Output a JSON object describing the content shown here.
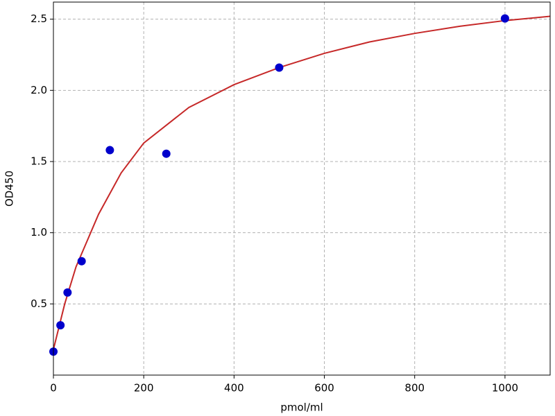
{
  "chart_data": {
    "type": "scatter",
    "xlabel": "pmol/ml",
    "ylabel": "OD450",
    "x": [
      0,
      15.6,
      31.25,
      62.5,
      125,
      250,
      500,
      1000
    ],
    "values": [
      0.165,
      0.35,
      0.58,
      0.8,
      1.58,
      1.555,
      2.16,
      2.505
    ],
    "color": "#0000cc",
    "fit": {
      "x": [
        0,
        25,
        50,
        100,
        150,
        200,
        300,
        400,
        500,
        600,
        700,
        800,
        900,
        1000,
        1100
      ],
      "values": [
        0.18,
        0.5,
        0.76,
        1.13,
        1.42,
        1.63,
        1.88,
        2.04,
        2.16,
        2.26,
        2.34,
        2.4,
        2.45,
        2.49,
        2.52
      ],
      "color": "#c62828"
    },
    "xlim": [
      0,
      1100
    ],
    "ylim": [
      0,
      2.62
    ],
    "xticks": [
      0,
      200,
      400,
      600,
      800,
      1000
    ],
    "yticks": [
      0.5,
      {
        "value": 1,
        "label": "1.0"
      },
      1.5,
      {
        "value": 2,
        "label": "2.0"
      },
      2.5
    ],
    "grid": true
  }
}
